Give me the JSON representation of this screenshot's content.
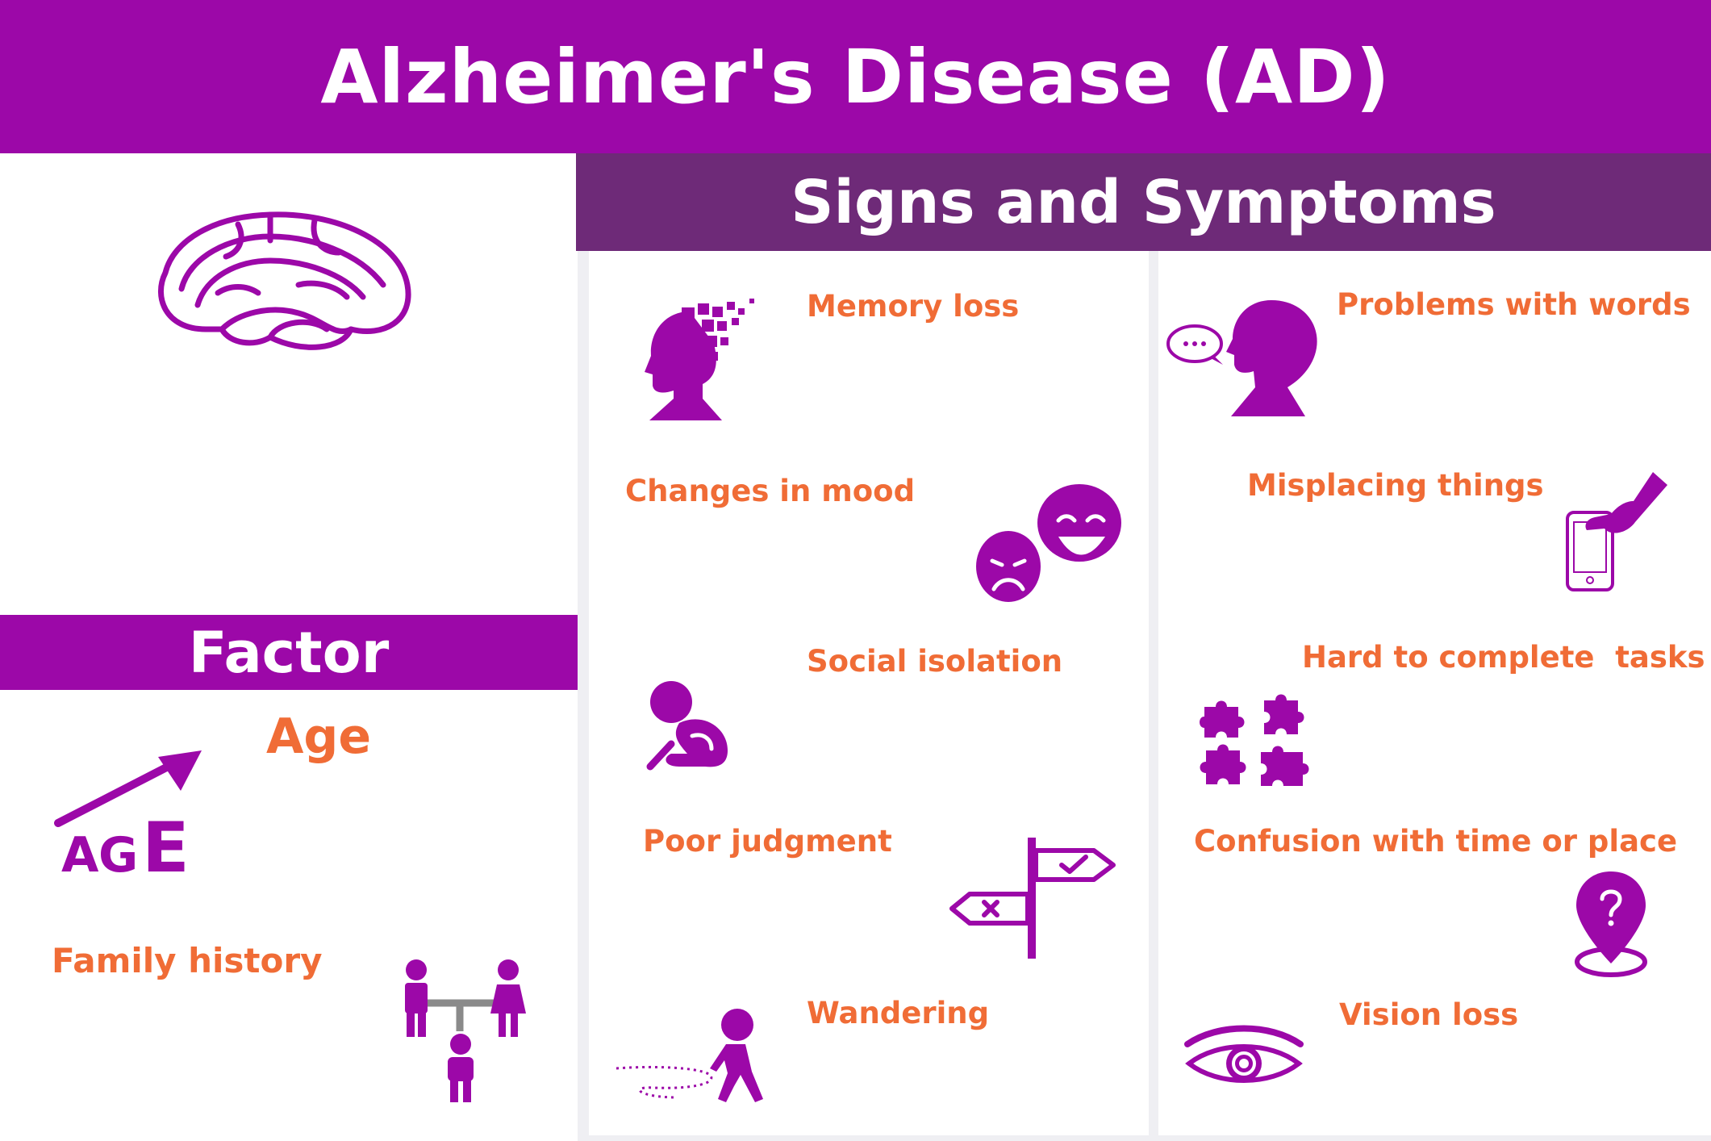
{
  "header": {
    "title": "Alzheimer's Disease (AD)"
  },
  "signs": {
    "title": "Signs and Symptoms",
    "items": [
      {
        "label": "Memory loss",
        "icon": "memory-loss-head-icon"
      },
      {
        "label": "Problems with words",
        "icon": "speech-bubble-head-icon"
      },
      {
        "label": "Changes in mood",
        "icon": "theater-masks-icon"
      },
      {
        "label": "Misplacing things",
        "icon": "hand-phone-icon"
      },
      {
        "label": "Social isolation",
        "icon": "sitting-person-icon"
      },
      {
        "label": "Hard to complete  tasks",
        "icon": "puzzle-pieces-icon"
      },
      {
        "label": "Poor judgment",
        "icon": "signpost-icon"
      },
      {
        "label": "Confusion with time or place",
        "icon": "location-pin-question-icon"
      },
      {
        "label": "Wandering",
        "icon": "walking-person-icon"
      },
      {
        "label": "Vision loss",
        "icon": "eye-icon"
      }
    ]
  },
  "factor": {
    "title": "Factor",
    "age_label": "Age",
    "age_icon_text": [
      "A",
      "G",
      "E"
    ],
    "family_label": "Family history"
  },
  "colors": {
    "purple": "#9c08a8",
    "dark_purple": "#6e2a78",
    "orange": "#f06c36",
    "gray": "#8a8a8a",
    "divider": "#efeff3"
  }
}
